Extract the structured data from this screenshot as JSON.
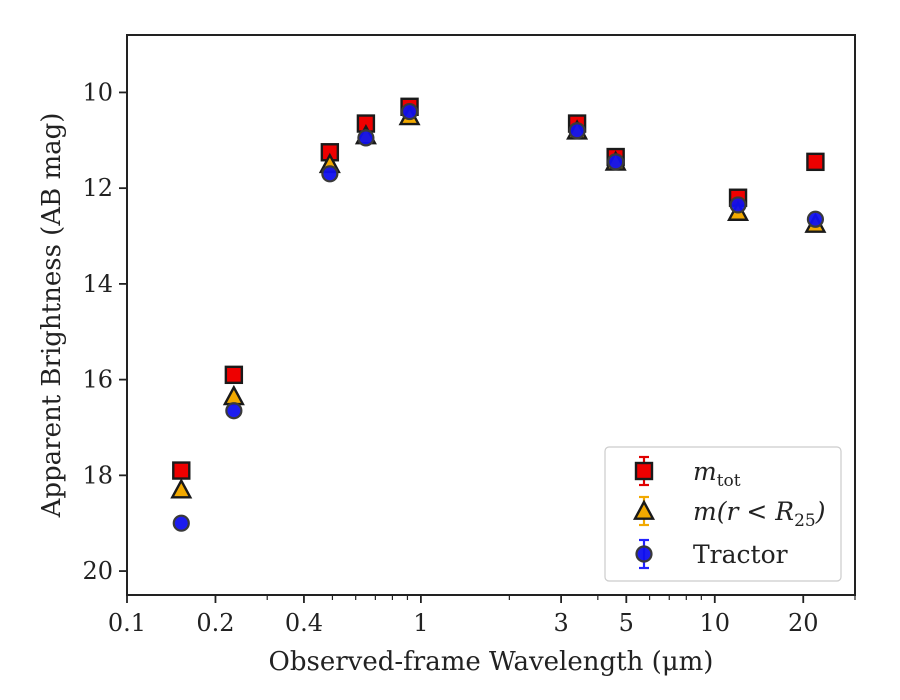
{
  "chart_data": {
    "type": "scatter",
    "xlabel": "Observed-frame Wavelength (μm)",
    "ylabel": "Apparent Brightness (AB mag)",
    "x_scale": "log",
    "y_inverted": true,
    "xlim": [
      0.1,
      30
    ],
    "ylim": [
      20.5,
      8.8
    ],
    "x_ticks": [
      {
        "value": 0.1,
        "label": "0.1"
      },
      {
        "value": 0.2,
        "label": "0.2"
      },
      {
        "value": 0.4,
        "label": "0.4"
      },
      {
        "value": 1,
        "label": "1"
      },
      {
        "value": 3,
        "label": "3"
      },
      {
        "value": 5,
        "label": "5"
      },
      {
        "value": 10,
        "label": "10"
      },
      {
        "value": 20,
        "label": "20"
      }
    ],
    "y_ticks": [
      {
        "value": 10,
        "label": "10"
      },
      {
        "value": 12,
        "label": "12"
      },
      {
        "value": 14,
        "label": "14"
      },
      {
        "value": 16,
        "label": "16"
      },
      {
        "value": 18,
        "label": "18"
      },
      {
        "value": 20,
        "label": "20"
      }
    ],
    "grid": false,
    "legend_position": "bottom-right",
    "series": [
      {
        "name": "m_tot",
        "legend_main": "m",
        "legend_sub": "tot",
        "marker": "square",
        "fill": "#ee0000",
        "stroke": "#1a1a1a",
        "errcolor": "#e00000",
        "points": [
          {
            "x": 0.153,
            "y": 17.9
          },
          {
            "x": 0.231,
            "y": 15.9
          },
          {
            "x": 0.49,
            "y": 11.25
          },
          {
            "x": 0.65,
            "y": 10.65
          },
          {
            "x": 0.915,
            "y": 10.3
          },
          {
            "x": 3.4,
            "y": 10.65
          },
          {
            "x": 4.6,
            "y": 11.35
          },
          {
            "x": 12.0,
            "y": 12.2
          },
          {
            "x": 22.0,
            "y": 11.45
          }
        ]
      },
      {
        "name": "m(r < R25)",
        "legend_main": "m(r < R",
        "legend_sub": "25",
        "legend_close": ")",
        "marker": "triangle",
        "fill": "#f2a900",
        "stroke": "#1a1a1a",
        "errcolor": "#f2a900",
        "points": [
          {
            "x": 0.153,
            "y": 18.3
          },
          {
            "x": 0.231,
            "y": 16.35
          },
          {
            "x": 0.49,
            "y": 11.5
          },
          {
            "x": 0.65,
            "y": 10.9
          },
          {
            "x": 0.915,
            "y": 10.5
          },
          {
            "x": 3.4,
            "y": 10.8
          },
          {
            "x": 4.6,
            "y": 11.45
          },
          {
            "x": 12.0,
            "y": 12.5
          },
          {
            "x": 22.0,
            "y": 12.75
          }
        ]
      },
      {
        "name": "Tractor",
        "marker": "circle",
        "fill": "#1010ee",
        "stroke": "#3a3a3a",
        "errcolor": "#2222ff",
        "points": [
          {
            "x": 0.153,
            "y": 19.0
          },
          {
            "x": 0.231,
            "y": 16.65
          },
          {
            "x": 0.49,
            "y": 11.7
          },
          {
            "x": 0.65,
            "y": 10.95
          },
          {
            "x": 0.915,
            "y": 10.4
          },
          {
            "x": 3.4,
            "y": 10.8
          },
          {
            "x": 4.6,
            "y": 11.45
          },
          {
            "x": 12.0,
            "y": 12.35
          },
          {
            "x": 22.0,
            "y": 12.65
          }
        ]
      }
    ]
  }
}
